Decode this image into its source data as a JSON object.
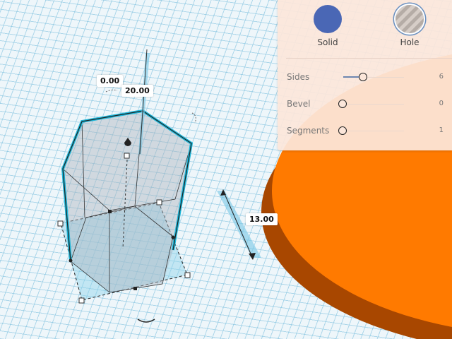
{
  "colors": {
    "solid": "#4a67b5",
    "hole": "#b0a9a4",
    "selection": "#1bb6d8",
    "shape_orange": "#ff7a00",
    "panel": "#fce6da"
  },
  "dimensions": {
    "rotation": "0.00",
    "height": "20.00",
    "elevation": "13.00"
  },
  "panel": {
    "solid_label": "Solid",
    "hole_label": "Hole",
    "params": [
      {
        "label": "Sides",
        "value": "6",
        "level": 0.3
      },
      {
        "label": "Bevel",
        "value": "0",
        "level": 0
      },
      {
        "label": "Segments",
        "value": "1",
        "level": 0
      }
    ]
  }
}
